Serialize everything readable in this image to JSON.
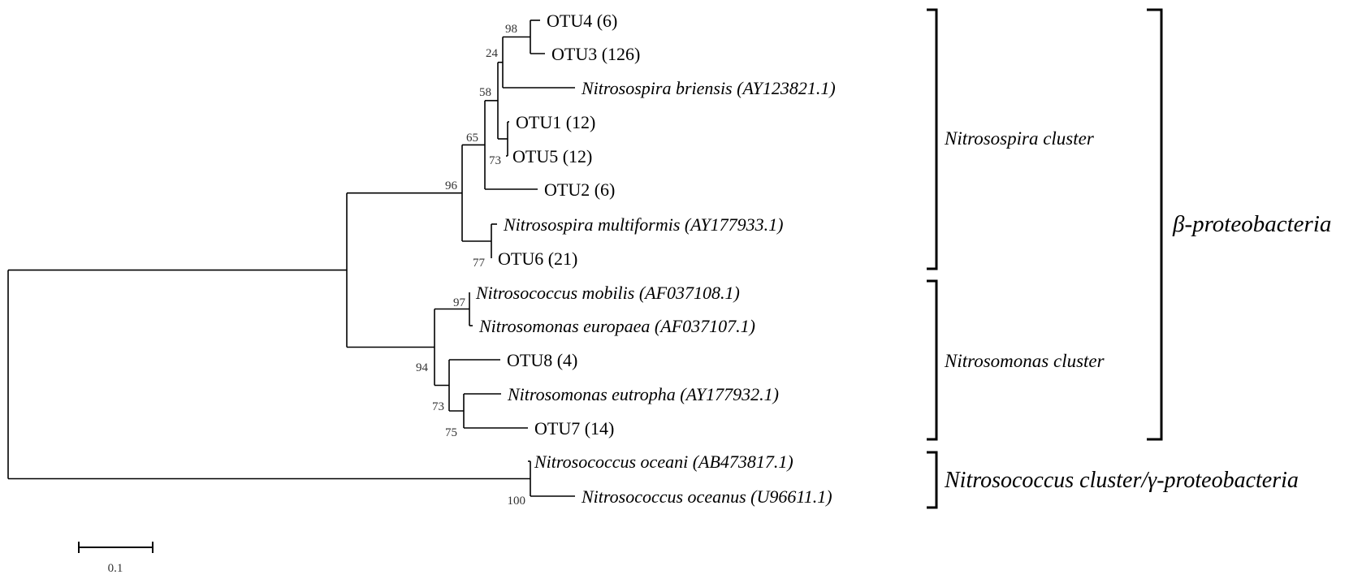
{
  "leaves": [
    {
      "id": "otu4",
      "label": "OTU4 (6)",
      "italic": false
    },
    {
      "id": "otu3",
      "label": "OTU3 (126)",
      "italic": false
    },
    {
      "id": "nbriensis",
      "label": "Nitrosospira briensis (AY123821.1)",
      "italic": true
    },
    {
      "id": "otu1",
      "label": "OTU1 (12)",
      "italic": false
    },
    {
      "id": "otu5",
      "label": "OTU5 (12)",
      "italic": false
    },
    {
      "id": "otu2",
      "label": "OTU2 (6)",
      "italic": false
    },
    {
      "id": "nmultiformis",
      "label": "Nitrosospira multiformis (AY177933.1)",
      "italic": true
    },
    {
      "id": "otu6",
      "label": "OTU6 (21)",
      "italic": false
    },
    {
      "id": "nmobilis",
      "label": "Nitrosococcus mobilis (AF037108.1)",
      "italic": true
    },
    {
      "id": "neuropaea",
      "label": "Nitrosomonas europaea (AF037107.1)",
      "italic": true
    },
    {
      "id": "otu8",
      "label": "OTU8 (4)",
      "italic": false
    },
    {
      "id": "neutropha",
      "label": "Nitrosomonas eutropha (AY177932.1)",
      "italic": true
    },
    {
      "id": "otu7",
      "label": "OTU7 (14)",
      "italic": false
    },
    {
      "id": "noceani",
      "label": "Nitrosococcus oceani (AB473817.1)",
      "italic": true
    },
    {
      "id": "noceanus",
      "label": "Nitrosococcus oceanus (U96611.1)",
      "italic": true
    }
  ],
  "bootstrap": [
    {
      "id": "otu4-otu3",
      "value": "98"
    },
    {
      "id": "with-briensis",
      "value": "24"
    },
    {
      "id": "otu1-otu5",
      "value": "73"
    },
    {
      "id": "upper-nitrosospira",
      "value": "58"
    },
    {
      "id": "with-otu2",
      "value": "65"
    },
    {
      "id": "multiformis-otu6",
      "value": "77"
    },
    {
      "id": "nitrosospira-cluster",
      "value": "96"
    },
    {
      "id": "mobilis-europaea",
      "value": "97"
    },
    {
      "id": "eutropha-otu7",
      "value": "75"
    },
    {
      "id": "otu8-group",
      "value": "73"
    },
    {
      "id": "nitrosomonas-cluster",
      "value": "94"
    },
    {
      "id": "oceani-oceanus",
      "value": "100"
    }
  ],
  "clusters": [
    {
      "id": "nitrosospira",
      "label": "Nitrosospira cluster"
    },
    {
      "id": "nitrosomonas",
      "label": "Nitrosomonas cluster"
    },
    {
      "id": "nitrosococcus",
      "label": "Nitrosococcus cluster/γ-proteobacteria"
    },
    {
      "id": "beta",
      "label": "β-proteobacteria"
    }
  ],
  "scale": {
    "label": "0.1"
  }
}
